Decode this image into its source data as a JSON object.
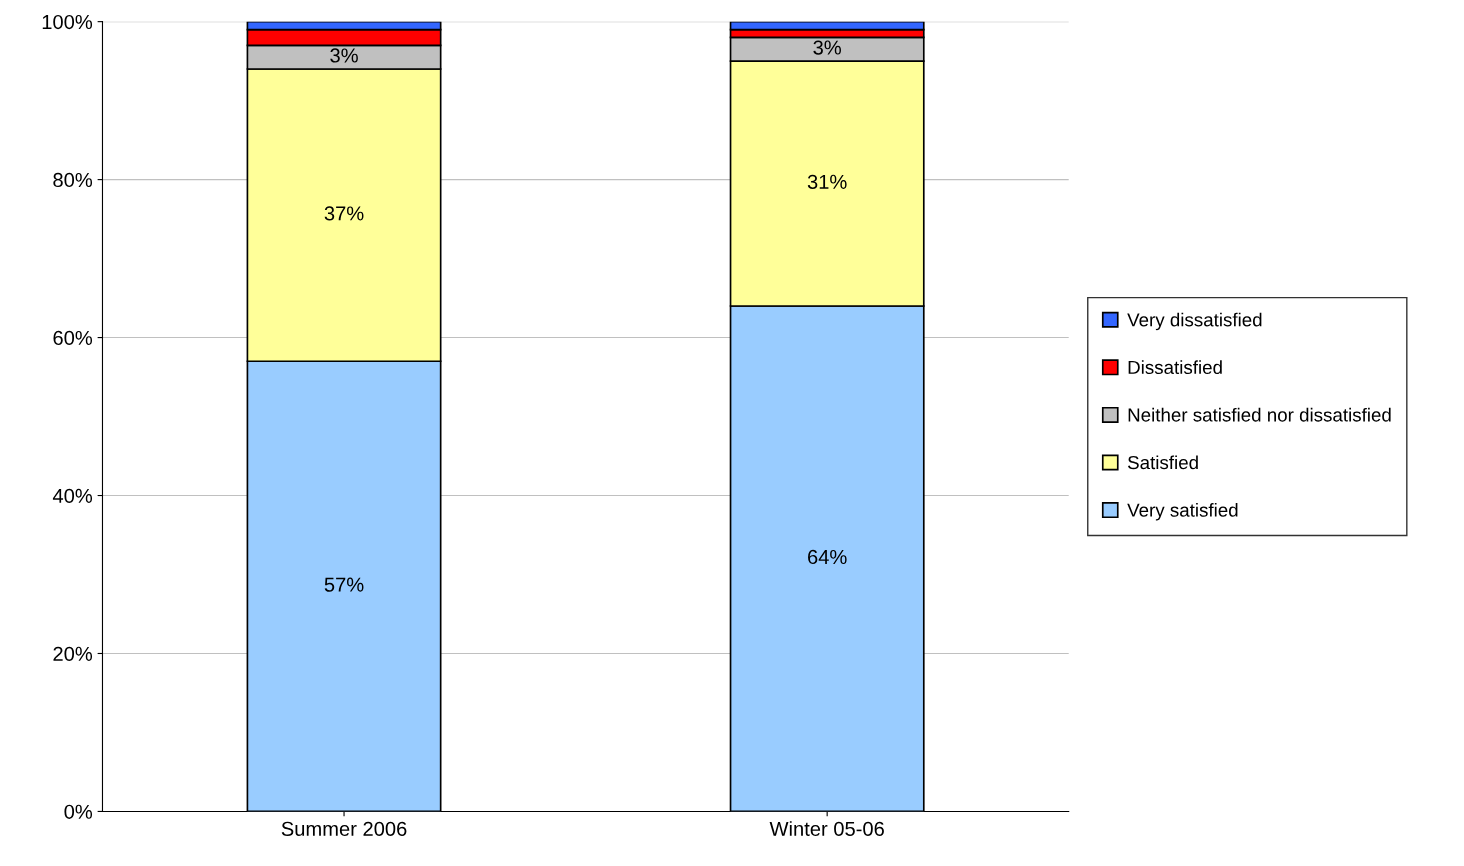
{
  "chart_data": {
    "type": "bar",
    "stacked": true,
    "categories": [
      "Summer 2006",
      "Winter 05-06"
    ],
    "series": [
      {
        "name": "Very satisfied",
        "color": "#99ccff",
        "values": [
          57,
          64
        ],
        "value_labels": [
          "57%",
          "64%"
        ]
      },
      {
        "name": "Satisfied",
        "color": "#ffff99",
        "values": [
          37,
          31
        ],
        "value_labels": [
          "37%",
          "31%"
        ]
      },
      {
        "name": "Neither satisfied nor dissatisfied",
        "color": "#c0c0c0",
        "values": [
          3,
          3
        ],
        "value_labels": [
          "3%",
          "3%"
        ]
      },
      {
        "name": "Dissatisfied",
        "color": "#ff0000",
        "values": [
          2,
          1
        ]
      },
      {
        "name": "Very dissatisfied",
        "color": "#3366ff",
        "values": [
          1,
          1
        ]
      }
    ],
    "ylim": [
      0,
      100
    ],
    "yticks": [
      {
        "value": 0,
        "label": "0%"
      },
      {
        "value": 20,
        "label": "20%"
      },
      {
        "value": 40,
        "label": "40%"
      },
      {
        "value": 60,
        "label": "60%"
      },
      {
        "value": 80,
        "label": "80%"
      },
      {
        "value": 100,
        "label": "100%"
      }
    ],
    "grid": "y",
    "legend": "right"
  }
}
